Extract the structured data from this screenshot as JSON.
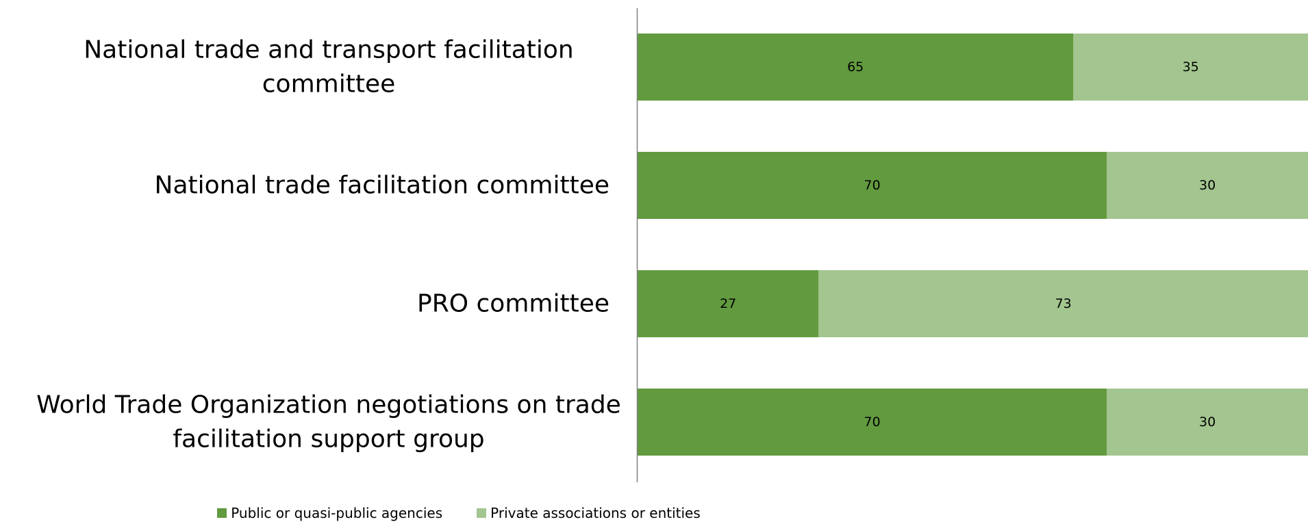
{
  "chart_data": {
    "type": "bar",
    "orientation": "horizontal",
    "stacked": true,
    "percent_stacked": true,
    "categories": [
      "National trade and transport facilitation committee",
      "National trade facilitation committee",
      "PRO committee",
      "World Trade Organization negotiations on trade facilitation support group"
    ],
    "series": [
      {
        "name": "Public or quasi-public agencies",
        "color": "#629a3f",
        "values": [
          65,
          70,
          27,
          70
        ]
      },
      {
        "name": "Private associations or entities",
        "color": "#a3c58f",
        "values": [
          35,
          30,
          73,
          30
        ]
      }
    ],
    "xlim": [
      0,
      100
    ],
    "data_labels": true,
    "grid": false,
    "legend_position": "bottom"
  }
}
